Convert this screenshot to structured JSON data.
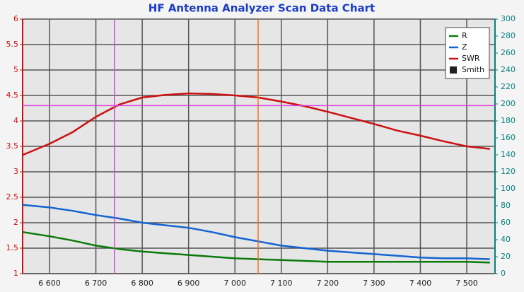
{
  "chart_data": {
    "type": "line",
    "title": "HF Antenna Analyzer Scan Data Chart",
    "x": [
      6542,
      6600,
      6650,
      6700,
      6750,
      6800,
      6850,
      6900,
      6950,
      7000,
      7050,
      7100,
      7150,
      7200,
      7250,
      7300,
      7350,
      7400,
      7450,
      7500,
      7550
    ],
    "series": [
      {
        "name": "R",
        "color": "#0a7a0a",
        "axis": "y2",
        "values": [
          49,
          44,
          39,
          33,
          29,
          26,
          24,
          22,
          20,
          18,
          17,
          16,
          15,
          14,
          14,
          14,
          14,
          14,
          14,
          14,
          13
        ]
      },
      {
        "name": "Z",
        "color": "#1464d2",
        "axis": "y2",
        "values": [
          81,
          78,
          74,
          69,
          65,
          60,
          57,
          54,
          49,
          43,
          38,
          33,
          30,
          27,
          25,
          23,
          21,
          19,
          18,
          18,
          17
        ]
      },
      {
        "name": "SWR",
        "color": "#cc1010",
        "values": [
          3.33,
          3.55,
          3.78,
          4.08,
          4.32,
          4.46,
          4.51,
          4.54,
          4.53,
          4.5,
          4.46,
          4.38,
          4.29,
          4.18,
          4.06,
          3.94,
          3.81,
          3.71,
          3.6,
          3.5,
          3.45
        ]
      }
    ],
    "extra_legend": {
      "name": "Smith",
      "color": "#222222"
    },
    "xlim": [
      6542,
      7561
    ],
    "xticks": [
      {
        "value": 6600,
        "label": "6 600"
      },
      {
        "value": 6700,
        "label": "6 700"
      },
      {
        "value": 6800,
        "label": "6 800"
      },
      {
        "value": 6900,
        "label": "6 900"
      },
      {
        "value": 7000,
        "label": "7 000"
      },
      {
        "value": 7100,
        "label": "7 100"
      },
      {
        "value": 7200,
        "label": "7 200"
      },
      {
        "value": 7300,
        "label": "7 300"
      },
      {
        "value": 7400,
        "label": "7 400"
      },
      {
        "value": 7500,
        "label": "7 500"
      }
    ],
    "ylim": [
      1,
      6
    ],
    "yticks": [
      1,
      1.5,
      2,
      2.5,
      3,
      3.5,
      4,
      4.5,
      5,
      5.5,
      6
    ],
    "y2lim": [
      0,
      300
    ],
    "y2ticks": [
      0,
      20,
      40,
      60,
      80,
      100,
      120,
      140,
      160,
      180,
      200,
      220,
      240,
      260,
      280,
      300
    ],
    "vlines": [
      {
        "value": 6740,
        "color": "#e040e0"
      },
      {
        "value": 7050,
        "color": "#f07020"
      }
    ],
    "hlines": [
      {
        "value": 4.3,
        "color": "#e040e0"
      }
    ],
    "grid": true,
    "legend": "top-right"
  }
}
